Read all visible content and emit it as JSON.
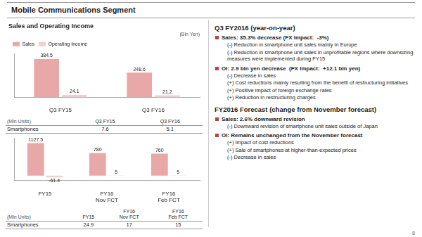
{
  "title": "Mobile Communications Segment",
  "chart_data": [
    {
      "type": "bar",
      "title": "Sales and Operating Income",
      "annotations": [
        "(Bln Yen)"
      ],
      "categories": [
        "Q3 FY15",
        "Q3 FY16"
      ],
      "series": [
        {
          "name": "Sales",
          "color": "#e8a8a8",
          "values": [
            384.5,
            248.6
          ]
        },
        {
          "name": "Operating Income",
          "color": "#f2cece",
          "values": [
            24.1,
            21.2
          ]
        }
      ],
      "ylim": [
        0,
        440
      ],
      "grid": false,
      "legend": "upper left",
      "data_labels": true,
      "tick_labels": "x",
      "table": {
        "unit": "(Mln Units)",
        "rows": [
          {
            "label": "Smartphones",
            "values": [
              7.6,
              5.1
            ]
          }
        ]
      }
    },
    {
      "type": "bar",
      "categories": [
        "FY15",
        [
          "FY16",
          "Nov FCT"
        ],
        [
          "FY16",
          "Feb FCT"
        ]
      ],
      "series": [
        {
          "name": "Sales",
          "color": "#e8a8a8",
          "values": [
            1127.5,
            780,
            760
          ]
        },
        {
          "name": "Operating Income",
          "color": "#f2cece",
          "values": [
            -61.4,
            5,
            5
          ]
        }
      ],
      "ylim": [
        -170,
        1310
      ],
      "grid": false,
      "data_labels": true,
      "tick_labels": "x",
      "table": {
        "unit": "(Mln Units)",
        "rows": [
          {
            "label": "Smartphones",
            "values": [
              24.9,
              17,
              15
            ]
          }
        ]
      }
    }
  ],
  "annotations": {
    "color": "#c04040",
    "sections": [
      {
        "title": "Q3 FY2016 (year-on-year)",
        "items": [
          {
            "text": "Sales: 35.3% decrease (FX Impact:  -3%)",
            "points": [
              "(-) Reduction in smartphone unit sales mainly in Europe",
              "(-) Reduction in smartphone unit sales in unprofitable regions where downsizing measures were implemented during FY15"
            ]
          },
          {
            "text": "OI: 2.9 bln yen decrease  (FX Impact:  +12.1 bln yen)",
            "points": [
              "(-) Decrease in sales",
              "(+) Cost reductions mainly resulting from the benefit of restructuring initiatives",
              "(+) Positive impact of foreign exchange rates",
              "(+) Reduction in restructuring charges"
            ]
          }
        ]
      },
      {
        "title": "FY2016 Forecast (change from November forecast)",
        "items": [
          {
            "text": "Sales: 2.6% downward revision",
            "points": [
              "(-) Downward revision of smartphone unit sales outside of Japan"
            ]
          },
          {
            "text": "OI: Remains unchanged from the November forecast",
            "points": [
              "(+) Impact of cost reductions",
              "(+) Sale of smartphones at higher-than-expected prices",
              "(-) Decrease in sales"
            ]
          }
        ]
      }
    ],
    "page": 8
  }
}
